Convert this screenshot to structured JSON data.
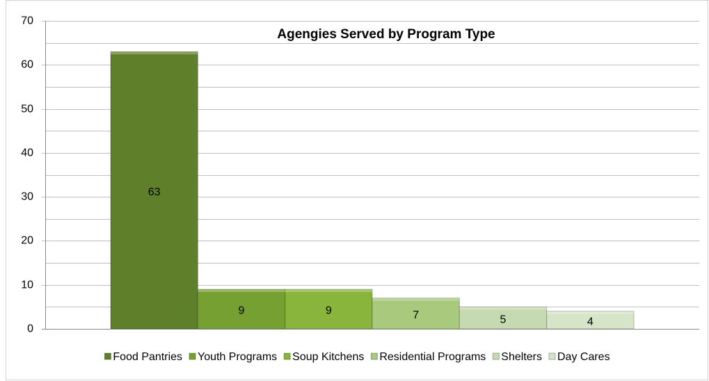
{
  "chart_data": {
    "type": "bar",
    "title": "Agengies Served by Program Type",
    "categories": [
      null
    ],
    "series": [
      {
        "name": "Food Pantries",
        "color": "#5f7f2a",
        "values": [
          63
        ]
      },
      {
        "name": "Youth Programs",
        "color": "#76a031",
        "values": [
          9
        ]
      },
      {
        "name": "Soup Kitchens",
        "color": "#8ab53d",
        "values": [
          9
        ]
      },
      {
        "name": "Residential Programs",
        "color": "#a9c97c",
        "values": [
          7
        ]
      },
      {
        "name": "Shelters",
        "color": "#c5dab0",
        "values": [
          5
        ]
      },
      {
        "name": "Day Cares",
        "color": "#d6e4c8",
        "values": [
          4
        ]
      }
    ],
    "ylim": [
      0,
      70
    ],
    "yticks": [
      0,
      10,
      20,
      30,
      40,
      50,
      60,
      70
    ],
    "minor_yticks": [
      5,
      15,
      25,
      35,
      45,
      55,
      65
    ],
    "grid": true,
    "legend": "bottom"
  }
}
